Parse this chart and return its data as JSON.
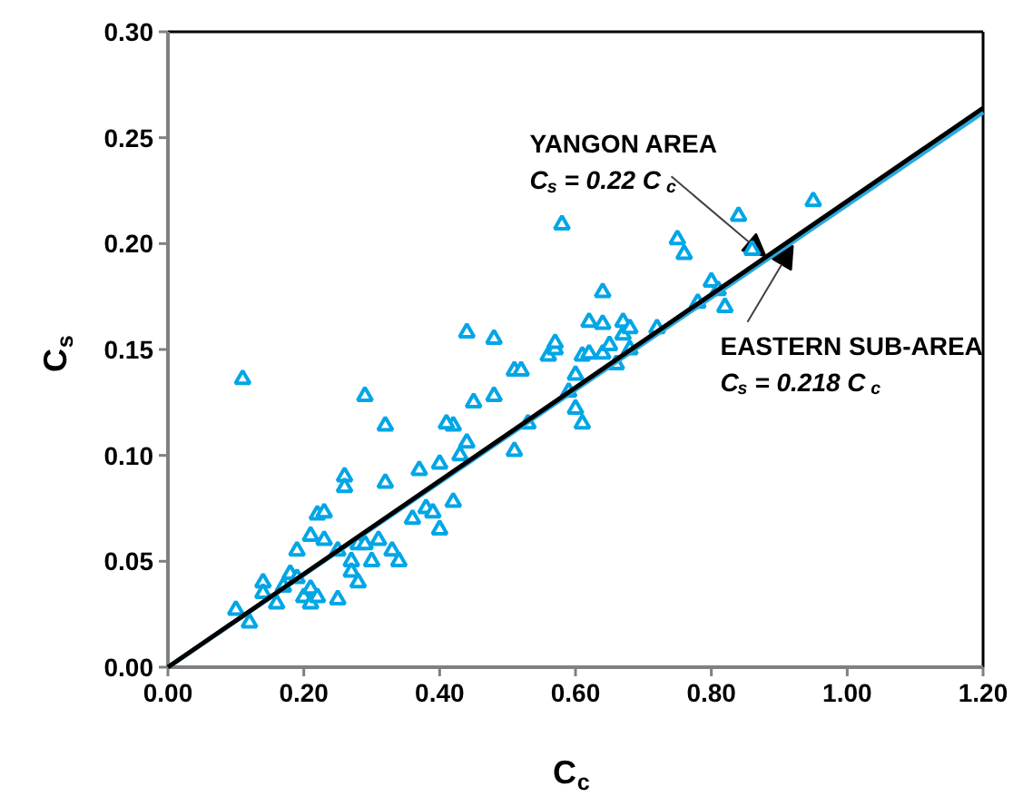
{
  "chart_data": {
    "type": "scatter",
    "xlabel": "C$_{c}$",
    "ylabel": "C$_{s}$",
    "xlim": [
      0,
      1.2
    ],
    "ylim": [
      0,
      0.3
    ],
    "xticks": [
      {
        "value": 0,
        "label": "0.00"
      },
      {
        "value": 0.2,
        "label": "0.20"
      },
      {
        "value": 0.4,
        "label": "0.40"
      },
      {
        "value": 0.6,
        "label": "0.60"
      },
      {
        "value": 0.8,
        "label": "0.80"
      },
      {
        "value": 1.0,
        "label": "1.00"
      },
      {
        "value": 1.2,
        "label": "1.20"
      }
    ],
    "yticks": [
      {
        "value": 0,
        "label": "0.00"
      },
      {
        "value": 0.05,
        "label": "0.05"
      },
      {
        "value": 0.1,
        "label": "0.10"
      },
      {
        "value": 0.15,
        "label": "0.15"
      },
      {
        "value": 0.2,
        "label": "0.20"
      },
      {
        "value": 0.25,
        "label": "0.25"
      },
      {
        "value": 0.3,
        "label": "0.30"
      }
    ],
    "grid": false,
    "series": [
      {
        "marker": "triangle",
        "color": "#00a6e6",
        "x": [
          0.11,
          0.1,
          0.12,
          0.14,
          0.14,
          0.16,
          0.17,
          0.18,
          0.19,
          0.19,
          0.2,
          0.21,
          0.21,
          0.22,
          0.21,
          0.22,
          0.23,
          0.23,
          0.25,
          0.25,
          0.26,
          0.26,
          0.27,
          0.27,
          0.28,
          0.28,
          0.29,
          0.29,
          0.3,
          0.31,
          0.32,
          0.32,
          0.33,
          0.34,
          0.36,
          0.37,
          0.38,
          0.39,
          0.4,
          0.4,
          0.42,
          0.41,
          0.42,
          0.43,
          0.44,
          0.44,
          0.45,
          0.48,
          0.48,
          0.51,
          0.51,
          0.52,
          0.53,
          0.56,
          0.57,
          0.57,
          0.58,
          0.59,
          0.6,
          0.61,
          0.6,
          0.61,
          0.62,
          0.62,
          0.64,
          0.64,
          0.64,
          0.65,
          0.66,
          0.67,
          0.67,
          0.68,
          0.68,
          0.72,
          0.75,
          0.76,
          0.78,
          0.8,
          0.81,
          0.82,
          0.84,
          0.86,
          0.95
        ],
        "values": [
          0.136,
          0.027,
          0.021,
          0.04,
          0.035,
          0.03,
          0.038,
          0.044,
          0.042,
          0.055,
          0.033,
          0.037,
          0.03,
          0.033,
          0.062,
          0.072,
          0.073,
          0.06,
          0.032,
          0.055,
          0.09,
          0.085,
          0.05,
          0.045,
          0.058,
          0.04,
          0.058,
          0.128,
          0.05,
          0.06,
          0.114,
          0.087,
          0.055,
          0.05,
          0.07,
          0.093,
          0.075,
          0.073,
          0.096,
          0.065,
          0.114,
          0.115,
          0.078,
          0.1,
          0.158,
          0.106,
          0.125,
          0.155,
          0.128,
          0.14,
          0.102,
          0.14,
          0.115,
          0.147,
          0.15,
          0.153,
          0.209,
          0.13,
          0.122,
          0.115,
          0.138,
          0.147,
          0.163,
          0.148,
          0.177,
          0.162,
          0.148,
          0.152,
          0.143,
          0.157,
          0.163,
          0.16,
          0.15,
          0.16,
          0.202,
          0.195,
          0.172,
          0.182,
          0.178,
          0.17,
          0.213,
          0.197,
          0.22
        ]
      },
      {
        "type": "line",
        "color": "#29aae1",
        "line_style": "solid",
        "x": [
          0,
          1.2
        ],
        "values": [
          0,
          0.262
        ]
      },
      {
        "type": "line",
        "color": "#000000",
        "line_style": "solid",
        "x": [
          0,
          1.2
        ],
        "values": [
          0,
          0.264
        ]
      }
    ],
    "annotations": [
      "YANGON AREA",
      {
        "text": "C$_{s}$ = 0.22 C$_{c}$",
        "x": 0.88,
        "y": 0.194
      },
      {
        "text": "EASTERN SUB-AREA",
        "x": 0.92,
        "y": 0.199
      },
      "C$_{s}$ = 0.218 C$_{c}$"
    ]
  }
}
